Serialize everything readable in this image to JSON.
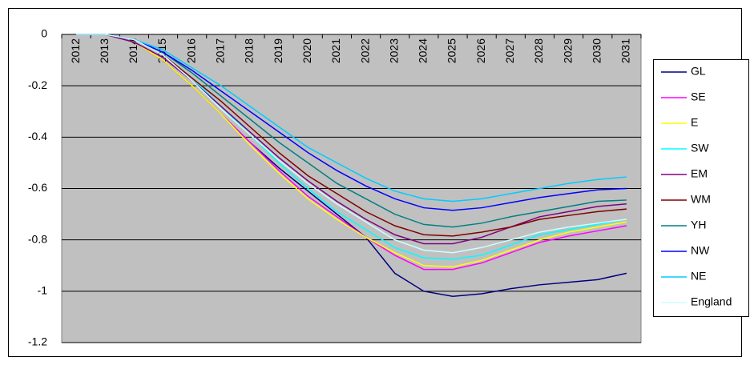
{
  "chart_data": {
    "type": "line",
    "categories": [
      "2012",
      "2013",
      "2014",
      "2015",
      "2016",
      "2017",
      "2018",
      "2019",
      "2020",
      "2021",
      "2022",
      "2023",
      "2024",
      "2025",
      "2026",
      "2027",
      "2028",
      "2029",
      "2030",
      "2031"
    ],
    "series": [
      {
        "name": "GL",
        "color": "#000080",
        "values": [
          0,
          0,
          -0.03,
          -0.1,
          -0.2,
          -0.31,
          -0.42,
          -0.52,
          -0.61,
          -0.7,
          -0.79,
          -0.93,
          -1.0,
          -1.02,
          -1.01,
          -0.99,
          -0.975,
          -0.965,
          -0.955,
          -0.93
        ]
      },
      {
        "name": "SE",
        "color": "#ff00ff",
        "values": [
          0,
          0,
          -0.03,
          -0.1,
          -0.2,
          -0.31,
          -0.42,
          -0.53,
          -0.63,
          -0.71,
          -0.79,
          -0.86,
          -0.915,
          -0.915,
          -0.89,
          -0.85,
          -0.81,
          -0.785,
          -0.765,
          -0.745
        ]
      },
      {
        "name": "E",
        "color": "#ffff00",
        "values": [
          0,
          0,
          -0.03,
          -0.1,
          -0.2,
          -0.31,
          -0.43,
          -0.54,
          -0.64,
          -0.72,
          -0.79,
          -0.85,
          -0.9,
          -0.905,
          -0.88,
          -0.84,
          -0.8,
          -0.77,
          -0.75,
          -0.73
        ]
      },
      {
        "name": "SW",
        "color": "#00ffff",
        "values": [
          0,
          0,
          -0.02,
          -0.08,
          -0.17,
          -0.28,
          -0.39,
          -0.5,
          -0.6,
          -0.69,
          -0.76,
          -0.83,
          -0.87,
          -0.875,
          -0.86,
          -0.82,
          -0.78,
          -0.76,
          -0.74,
          -0.72
        ]
      },
      {
        "name": "EM",
        "color": "#800080",
        "values": [
          0,
          0,
          -0.03,
          -0.09,
          -0.18,
          -0.28,
          -0.38,
          -0.48,
          -0.57,
          -0.65,
          -0.72,
          -0.78,
          -0.815,
          -0.815,
          -0.79,
          -0.75,
          -0.71,
          -0.69,
          -0.67,
          -0.66
        ]
      },
      {
        "name": "WM",
        "color": "#800000",
        "values": [
          0,
          0,
          -0.02,
          -0.08,
          -0.17,
          -0.26,
          -0.36,
          -0.46,
          -0.55,
          -0.62,
          -0.69,
          -0.745,
          -0.78,
          -0.785,
          -0.77,
          -0.75,
          -0.72,
          -0.705,
          -0.69,
          -0.68
        ]
      },
      {
        "name": "YH",
        "color": "#008080",
        "values": [
          0,
          0,
          -0.02,
          -0.07,
          -0.15,
          -0.24,
          -0.33,
          -0.42,
          -0.5,
          -0.58,
          -0.64,
          -0.7,
          -0.74,
          -0.75,
          -0.735,
          -0.71,
          -0.69,
          -0.67,
          -0.65,
          -0.645
        ]
      },
      {
        "name": "NW",
        "color": "#0000ff",
        "values": [
          0,
          0,
          -0.02,
          -0.07,
          -0.14,
          -0.22,
          -0.3,
          -0.38,
          -0.46,
          -0.53,
          -0.59,
          -0.64,
          -0.675,
          -0.685,
          -0.675,
          -0.655,
          -0.635,
          -0.62,
          -0.605,
          -0.6
        ]
      },
      {
        "name": "NE",
        "color": "#00ccff",
        "values": [
          0,
          0,
          -0.02,
          -0.06,
          -0.13,
          -0.2,
          -0.28,
          -0.36,
          -0.44,
          -0.5,
          -0.56,
          -0.61,
          -0.64,
          -0.65,
          -0.64,
          -0.62,
          -0.6,
          -0.58,
          -0.565,
          -0.555
        ]
      },
      {
        "name": "England",
        "color": "#ccffff",
        "values": [
          0,
          0,
          -0.02,
          -0.08,
          -0.18,
          -0.29,
          -0.39,
          -0.49,
          -0.58,
          -0.66,
          -0.73,
          -0.8,
          -0.84,
          -0.85,
          -0.83,
          -0.8,
          -0.77,
          -0.75,
          -0.735,
          -0.72
        ]
      }
    ],
    "ylim": [
      -1.2,
      0
    ],
    "yticks": [
      0,
      -0.2,
      -0.4,
      -0.6,
      -0.8,
      -1,
      -1.2
    ],
    "grid": true,
    "plot_background": "#c0c0c0",
    "legend": "right"
  }
}
